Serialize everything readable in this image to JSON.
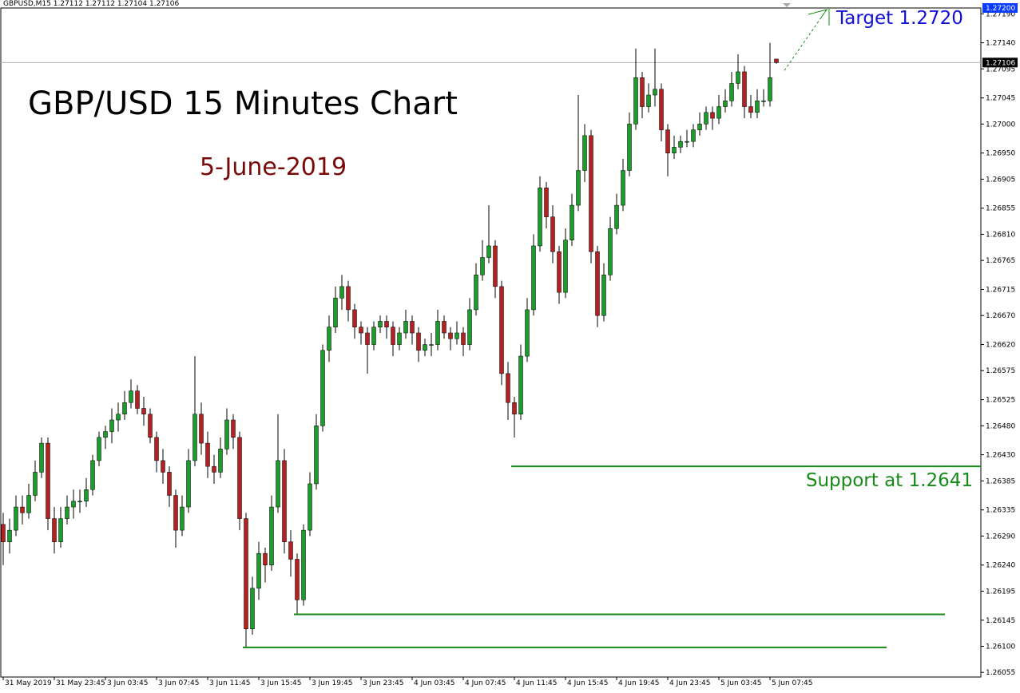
{
  "chart_data": {
    "type": "candlestick",
    "header": "GBPUSD,M15  1.27112 1.27112 1.27104 1.27106",
    "title": "GBP/USD 15 Minutes Chart",
    "subtitle": "5-June-2019",
    "up_color": "#1f9a2e",
    "down_color": "#b22222",
    "wick_color": "#000000",
    "ylim": [
      1.26047,
      1.272
    ],
    "yticks": [
      {
        "value": 1.2719,
        "label": "1.27190"
      },
      {
        "value": 1.2714,
        "label": "1.27140"
      },
      1.27095,
      1.27045,
      {
        "value": 1.27,
        "label": "1.27000"
      },
      {
        "value": 1.2695,
        "label": "1.26950"
      },
      1.26905,
      1.26855,
      {
        "value": 1.2681,
        "label": "1.26810"
      },
      1.26765,
      1.26715,
      {
        "value": 1.2667,
        "label": "1.26670"
      },
      {
        "value": 1.2662,
        "label": "1.26620"
      },
      1.26575,
      1.26525,
      {
        "value": 1.2648,
        "label": "1.26480"
      },
      {
        "value": 1.2643,
        "label": "1.26430"
      },
      1.26385,
      1.26335,
      {
        "value": 1.2629,
        "label": "1.26290"
      },
      {
        "value": 1.2624,
        "label": "1.26240"
      },
      1.26195,
      1.26145,
      {
        "value": 1.261,
        "label": "1.26100"
      },
      1.26055
    ],
    "axis_marks": [
      {
        "value": 1.272,
        "label": "1.27200",
        "color": "#0a3cff"
      },
      {
        "value": 1.27106,
        "label": "1.27106",
        "color": "#000000"
      }
    ],
    "target": {
      "text": "Target 1.2720",
      "value": 1.272,
      "color": "#1010d8"
    },
    "supports": [
      {
        "text": "Support at 1.2641",
        "value": 1.2641
      },
      {
        "value": 1.26155
      },
      {
        "value": 1.26098
      }
    ],
    "support_color": "#168a16",
    "categories": [
      "31 May 2019",
      null,
      null,
      null,
      null,
      null,
      null,
      null,
      "31 May 23:45",
      null,
      null,
      null,
      null,
      null,
      null,
      null,
      "3 Jun 03:45",
      null,
      null,
      null,
      null,
      null,
      null,
      null,
      "3 Jun 07:45",
      null,
      null,
      null,
      null,
      null,
      null,
      null,
      "3 Jun 11:45",
      null,
      null,
      null,
      null,
      null,
      null,
      null,
      "3 Jun 15:45",
      null,
      null,
      null,
      null,
      null,
      null,
      null,
      "3 Jun 19:45",
      null,
      null,
      null,
      null,
      null,
      null,
      null,
      "3 Jun 23:45",
      null,
      null,
      null,
      null,
      null,
      null,
      null,
      "4 Jun 03:45",
      null,
      null,
      null,
      null,
      null,
      null,
      null,
      "4 Jun 07:45",
      null,
      null,
      null,
      null,
      null,
      null,
      null,
      "4 Jun 11:45",
      null,
      null,
      null,
      null,
      null,
      null,
      null,
      "4 Jun 15:45",
      null,
      null,
      null,
      null,
      null,
      null,
      null,
      "4 Jun 19:45",
      null,
      null,
      null,
      null,
      null,
      null,
      null,
      "4 Jun 23:45",
      null,
      null,
      null,
      null,
      null,
      null,
      null,
      "5 Jun 03:45",
      null,
      null,
      null,
      null,
      null,
      null,
      null,
      "5 Jun 07:45",
      null
    ],
    "ohlc": [
      [
        1.2631,
        1.2633,
        1.2624,
        1.2628
      ],
      [
        1.2628,
        1.2632,
        1.2626,
        1.263
      ],
      [
        1.263,
        1.2636,
        1.2629,
        1.2634
      ],
      [
        1.2634,
        1.2636,
        1.2631,
        1.2633
      ],
      [
        1.2633,
        1.2638,
        1.2632,
        1.2636
      ],
      [
        1.2636,
        1.2642,
        1.2635,
        1.264
      ],
      [
        1.264,
        1.2646,
        1.2639,
        1.2645
      ],
      [
        1.2645,
        1.2646,
        1.263,
        1.2632
      ],
      [
        1.2632,
        1.2634,
        1.2626,
        1.2628
      ],
      [
        1.2628,
        1.2634,
        1.2627,
        1.2632
      ],
      [
        1.2632,
        1.2636,
        1.2631,
        1.2634
      ],
      [
        1.2634,
        1.2637,
        1.2632,
        1.2635
      ],
      [
        1.2635,
        1.2637,
        1.2633,
        1.2635
      ],
      [
        1.2635,
        1.2639,
        1.2634,
        1.2637
      ],
      [
        1.2637,
        1.2643,
        1.2636,
        1.2642
      ],
      [
        1.2642,
        1.2647,
        1.2641,
        1.2646
      ],
      [
        1.2646,
        1.2648,
        1.2644,
        1.2647
      ],
      [
        1.2647,
        1.2651,
        1.2645,
        1.2649
      ],
      [
        1.2649,
        1.2652,
        1.2647,
        1.265
      ],
      [
        1.265,
        1.2654,
        1.2649,
        1.2652
      ],
      [
        1.2652,
        1.2656,
        1.2651,
        1.2654
      ],
      [
        1.2654,
        1.2655,
        1.265,
        1.2651
      ],
      [
        1.2651,
        1.2653,
        1.2648,
        1.265
      ],
      [
        1.265,
        1.2651,
        1.2645,
        1.2646
      ],
      [
        1.2646,
        1.2647,
        1.264,
        1.2642
      ],
      [
        1.2642,
        1.2644,
        1.2638,
        1.264
      ],
      [
        1.264,
        1.2641,
        1.2634,
        1.2636
      ],
      [
        1.2636,
        1.2637,
        1.2627,
        1.263
      ],
      [
        1.263,
        1.2636,
        1.2629,
        1.2634
      ],
      [
        1.2634,
        1.2644,
        1.2633,
        1.2642
      ],
      [
        1.2642,
        1.266,
        1.2641,
        1.265
      ],
      [
        1.265,
        1.2652,
        1.2643,
        1.2645
      ],
      [
        1.2645,
        1.2647,
        1.2639,
        1.2641
      ],
      [
        1.2641,
        1.2643,
        1.2638,
        1.264
      ],
      [
        1.264,
        1.2646,
        1.2639,
        1.2644
      ],
      [
        1.2644,
        1.2651,
        1.2643,
        1.2649
      ],
      [
        1.2649,
        1.265,
        1.2644,
        1.2646
      ],
      [
        1.2646,
        1.2647,
        1.263,
        1.2632
      ],
      [
        1.2632,
        1.2633,
        1.26098,
        1.2613
      ],
      [
        1.2613,
        1.2622,
        1.2612,
        1.262
      ],
      [
        1.262,
        1.2628,
        1.2618,
        1.2626
      ],
      [
        1.2626,
        1.2627,
        1.2621,
        1.2624
      ],
      [
        1.2624,
        1.2636,
        1.2623,
        1.2634
      ],
      [
        1.2634,
        1.265,
        1.2633,
        1.2642
      ],
      [
        1.2642,
        1.2644,
        1.2626,
        1.2628
      ],
      [
        1.2628,
        1.263,
        1.2622,
        1.2625
      ],
      [
        1.2625,
        1.2626,
        1.26155,
        1.2618
      ],
      [
        1.2618,
        1.2631,
        1.2617,
        1.263
      ],
      [
        1.263,
        1.264,
        1.2629,
        1.2638
      ],
      [
        1.2638,
        1.265,
        1.2637,
        1.2648
      ],
      [
        1.2648,
        1.2662,
        1.2647,
        1.2661
      ],
      [
        1.2661,
        1.2667,
        1.2659,
        1.2665
      ],
      [
        1.2665,
        1.2672,
        1.2664,
        1.267
      ],
      [
        1.267,
        1.2674,
        1.2668,
        1.2672
      ],
      [
        1.2672,
        1.2673,
        1.2666,
        1.2668
      ],
      [
        1.2668,
        1.2669,
        1.2663,
        1.2665
      ],
      [
        1.2665,
        1.2666,
        1.2662,
        1.2664
      ],
      [
        1.2664,
        1.2665,
        1.2657,
        1.2662
      ],
      [
        1.2662,
        1.2666,
        1.2661,
        1.2665
      ],
      [
        1.2665,
        1.2667,
        1.2664,
        1.2666
      ],
      [
        1.2666,
        1.2667,
        1.2663,
        1.2665
      ],
      [
        1.2665,
        1.2666,
        1.266,
        1.2662
      ],
      [
        1.2662,
        1.2665,
        1.2661,
        1.2664
      ],
      [
        1.2664,
        1.2668,
        1.2663,
        1.2666
      ],
      [
        1.2666,
        1.2667,
        1.2662,
        1.2664
      ],
      [
        1.2664,
        1.2665,
        1.2659,
        1.2661
      ],
      [
        1.2661,
        1.2663,
        1.266,
        1.2662
      ],
      [
        1.2662,
        1.2664,
        1.266,
        1.2662
      ],
      [
        1.2662,
        1.2668,
        1.2661,
        1.2666
      ],
      [
        1.2666,
        1.2667,
        1.2663,
        1.2664
      ],
      [
        1.2664,
        1.2665,
        1.2661,
        1.2663
      ],
      [
        1.2663,
        1.2666,
        1.2662,
        1.2664
      ],
      [
        1.2664,
        1.2665,
        1.266,
        1.2662
      ],
      [
        1.2662,
        1.267,
        1.2661,
        1.2668
      ],
      [
        1.2668,
        1.2676,
        1.2667,
        1.2674
      ],
      [
        1.2674,
        1.268,
        1.2673,
        1.2677
      ],
      [
        1.2677,
        1.2686,
        1.2676,
        1.2679
      ],
      [
        1.2679,
        1.268,
        1.267,
        1.2672
      ],
      [
        1.2672,
        1.2673,
        1.2655,
        1.2657
      ],
      [
        1.2657,
        1.2659,
        1.2649,
        1.2652
      ],
      [
        1.2652,
        1.2653,
        1.2646,
        1.265
      ],
      [
        1.265,
        1.2662,
        1.2649,
        1.266
      ],
      [
        1.266,
        1.267,
        1.2659,
        1.2668
      ],
      [
        1.2668,
        1.2681,
        1.2667,
        1.2679
      ],
      [
        1.2679,
        1.2691,
        1.2678,
        1.2689
      ],
      [
        1.2689,
        1.269,
        1.2682,
        1.2684
      ],
      [
        1.2684,
        1.2686,
        1.2676,
        1.2678
      ],
      [
        1.2678,
        1.2679,
        1.2669,
        1.2671
      ],
      [
        1.2671,
        1.2682,
        1.267,
        1.268
      ],
      [
        1.268,
        1.2688,
        1.2679,
        1.2686
      ],
      [
        1.2686,
        1.2705,
        1.2685,
        1.2692
      ],
      [
        1.2692,
        1.27,
        1.269,
        1.2698
      ],
      [
        1.2698,
        1.2699,
        1.2676,
        1.2678
      ],
      [
        1.2678,
        1.2679,
        1.2665,
        1.2667
      ],
      [
        1.2667,
        1.2676,
        1.2666,
        1.2674
      ],
      [
        1.2674,
        1.2684,
        1.2673,
        1.2682
      ],
      [
        1.2682,
        1.2688,
        1.2681,
        1.2686
      ],
      [
        1.2686,
        1.2694,
        1.2685,
        1.2692
      ],
      [
        1.2692,
        1.2702,
        1.2691,
        1.27
      ],
      [
        1.27,
        1.2713,
        1.2699,
        1.2708
      ],
      [
        1.2708,
        1.2709,
        1.2701,
        1.2703
      ],
      [
        1.2703,
        1.2707,
        1.2702,
        1.2705
      ],
      [
        1.2705,
        1.2713,
        1.2703,
        1.2706
      ],
      [
        1.2706,
        1.2707,
        1.2697,
        1.2699
      ],
      [
        1.2699,
        1.27,
        1.2691,
        1.2695
      ],
      [
        1.2695,
        1.2698,
        1.2694,
        1.2696
      ],
      [
        1.2696,
        1.2698,
        1.2695,
        1.2697
      ],
      [
        1.2697,
        1.2699,
        1.2696,
        1.2697
      ],
      [
        1.2697,
        1.27,
        1.2696,
        1.2699
      ],
      [
        1.2699,
        1.2702,
        1.2698,
        1.27
      ],
      [
        1.27,
        1.2703,
        1.2699,
        1.2702
      ],
      [
        1.2702,
        1.2703,
        1.2699,
        1.2701
      ],
      [
        1.2701,
        1.2705,
        1.27,
        1.2703
      ],
      [
        1.2703,
        1.2706,
        1.2702,
        1.2704
      ],
      [
        1.2704,
        1.2709,
        1.2703,
        1.2707
      ],
      [
        1.2707,
        1.2712,
        1.2706,
        1.2709
      ],
      [
        1.2709,
        1.271,
        1.2701,
        1.2703
      ],
      [
        1.2703,
        1.2705,
        1.2701,
        1.2702
      ],
      [
        1.2702,
        1.2706,
        1.2701,
        1.2704
      ],
      [
        1.2704,
        1.2706,
        1.2703,
        1.2704
      ],
      [
        1.2704,
        1.2714,
        1.2703,
        1.2708
      ],
      [
        1.27112,
        1.27112,
        1.27104,
        1.27106
      ]
    ]
  }
}
